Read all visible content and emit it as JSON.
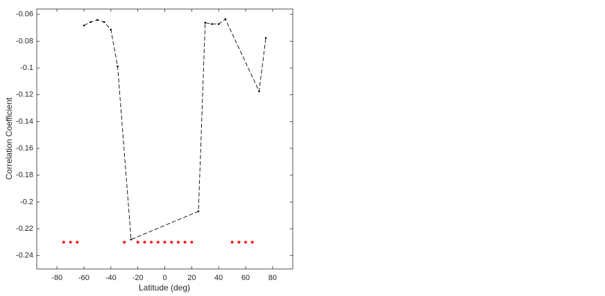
{
  "chart_data": {
    "type": "line",
    "xlabel": "Latitude (deg)",
    "ylabel": "Correlation Coefficient",
    "xlim": [
      -95,
      95
    ],
    "ylim": [
      -0.25,
      -0.056
    ],
    "xticks": [
      -80,
      -60,
      -40,
      -20,
      0,
      20,
      40,
      60,
      80
    ],
    "yticks": [
      -0.24,
      -0.22,
      -0.2,
      -0.18,
      -0.16,
      -0.14,
      -0.12,
      -0.1,
      -0.08,
      -0.06
    ],
    "series": [
      {
        "color": "#000000",
        "style": "dashed-dots",
        "x": [
          -60,
          -55,
          -50,
          -45,
          -40,
          -35,
          -25,
          25,
          30,
          35,
          40,
          45,
          70,
          75
        ],
        "values": [
          -0.0683,
          -0.0657,
          -0.0641,
          -0.0657,
          -0.0714,
          -0.0988,
          -0.228,
          -0.207,
          -0.0662,
          -0.0672,
          -0.0672,
          -0.0636,
          -0.1174,
          -0.0776
        ]
      },
      {
        "color": "#ff0000",
        "style": "stars",
        "x": [
          -75,
          -70,
          -65,
          -30,
          -20,
          -15,
          -10,
          -5,
          0,
          5,
          10,
          15,
          20,
          50,
          55,
          60,
          65
        ],
        "values": [
          -0.23,
          -0.23,
          -0.23,
          -0.23,
          -0.23,
          -0.23,
          -0.23,
          -0.23,
          -0.23,
          -0.23,
          -0.23,
          -0.23,
          -0.23,
          -0.23,
          -0.23,
          -0.23,
          -0.23
        ]
      }
    ]
  }
}
